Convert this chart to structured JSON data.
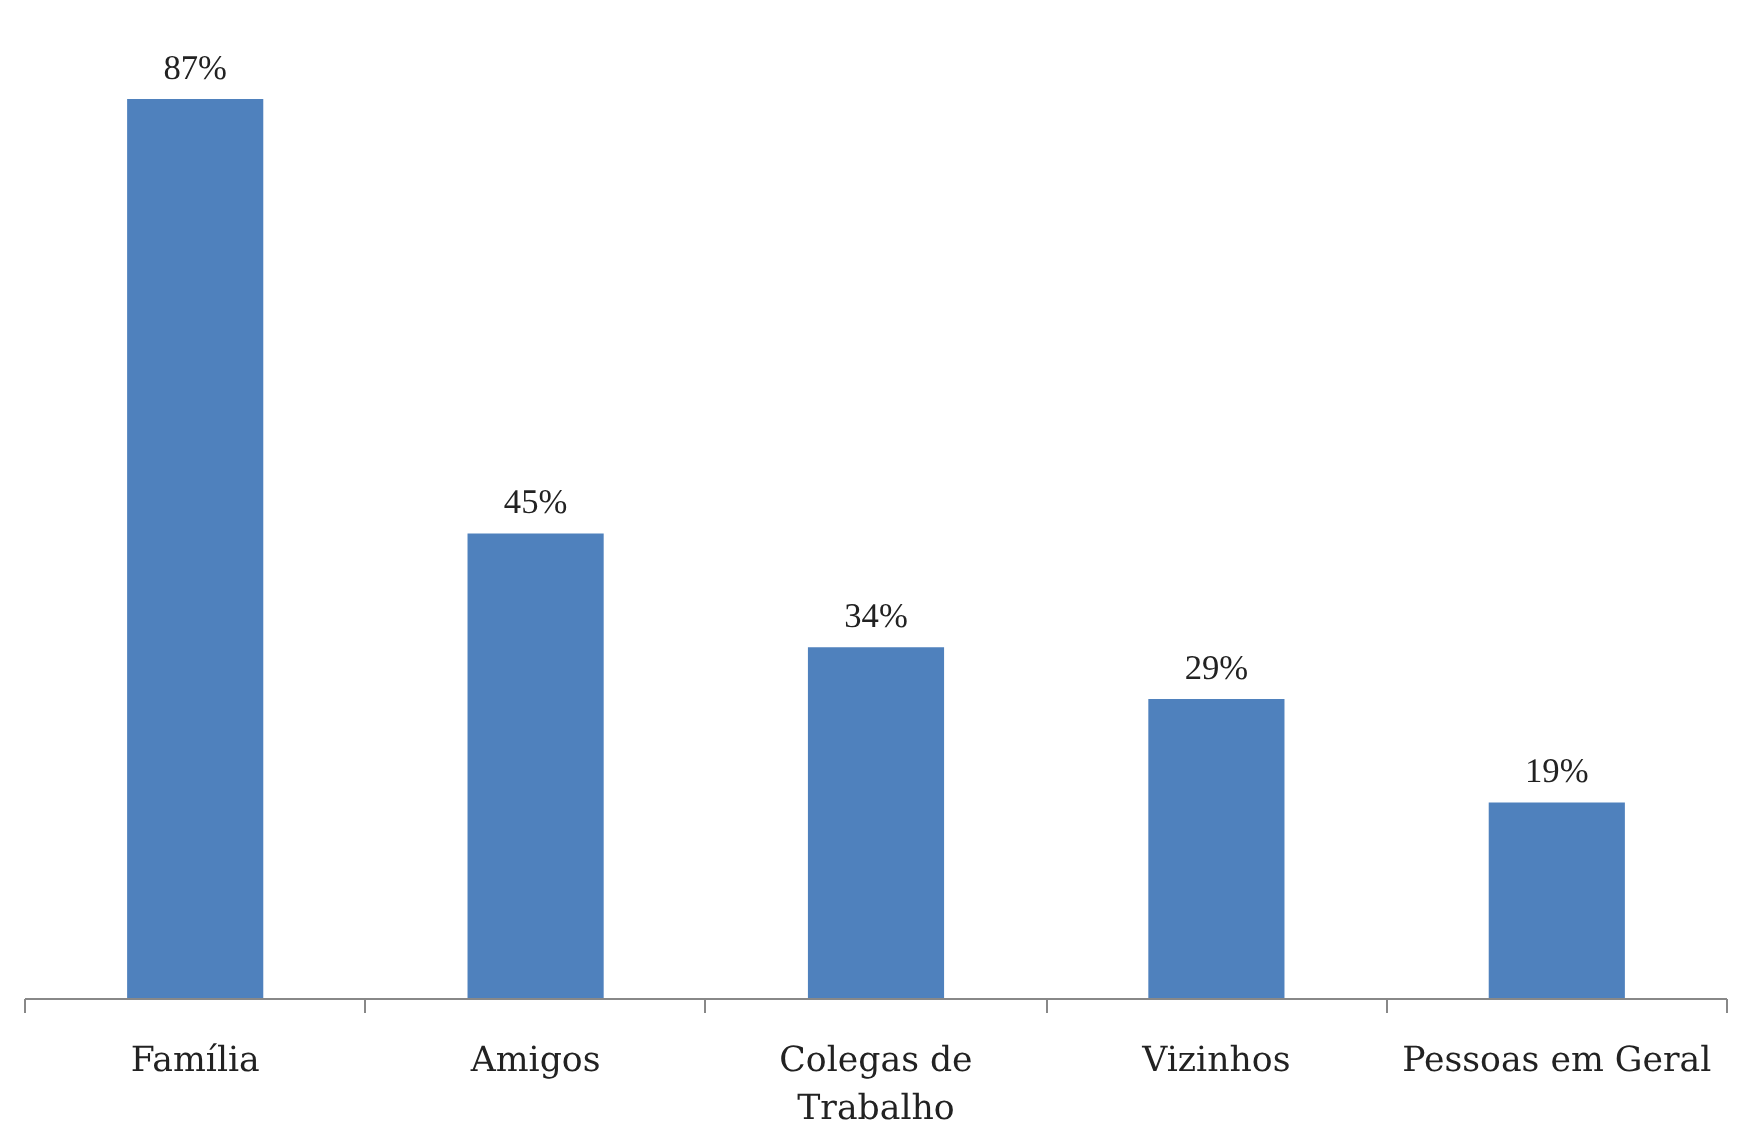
{
  "chart_data": {
    "type": "bar",
    "categories": [
      "Família",
      "Amigos",
      "Colegas de Trabalho",
      "Vizinhos",
      "Pessoas em Geral"
    ],
    "values": [
      87,
      45,
      34,
      29,
      19
    ],
    "value_labels": [
      "87%",
      "45%",
      "34%",
      "29%",
      "19%"
    ],
    "color": "#4f81bd",
    "grid": false
  }
}
